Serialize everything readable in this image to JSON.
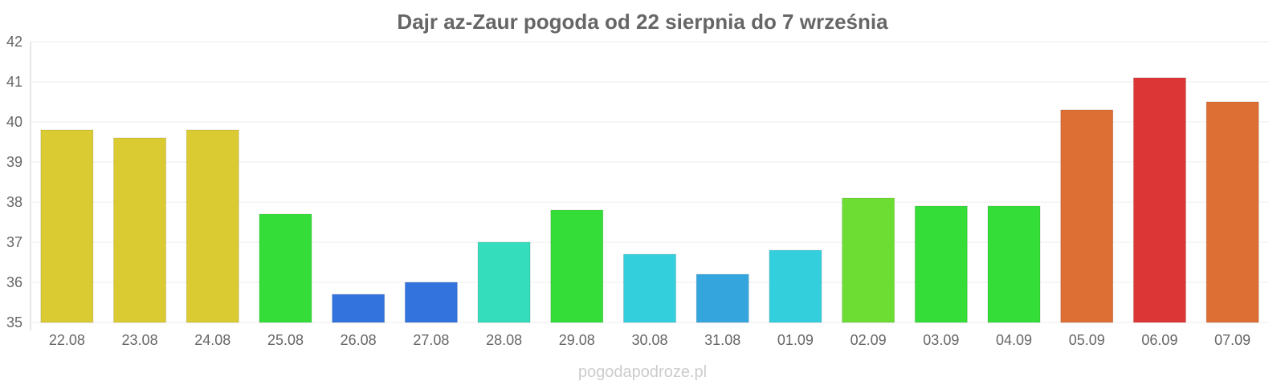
{
  "chart_data": {
    "type": "bar",
    "title": "Dajr az-Zaur pogoda od 22 sierpnia do 7 września",
    "xlabel": "",
    "ylabel": "",
    "ylim": [
      35,
      42
    ],
    "yticks": [
      35,
      36,
      37,
      38,
      39,
      40,
      41,
      42
    ],
    "grid": true,
    "categories": [
      "22.08",
      "23.08",
      "24.08",
      "25.08",
      "26.08",
      "27.08",
      "28.08",
      "29.08",
      "30.08",
      "31.08",
      "01.09",
      "02.09",
      "03.09",
      "04.09",
      "05.09",
      "06.09",
      "07.09"
    ],
    "values": [
      39.8,
      39.6,
      39.8,
      37.7,
      35.7,
      36.0,
      37.0,
      37.8,
      36.7,
      36.2,
      36.8,
      38.1,
      37.9,
      37.9,
      40.3,
      41.1,
      40.5
    ],
    "colors": [
      "#dbcb32",
      "#dbcb32",
      "#dbcb32",
      "#34dd37",
      "#3373dd",
      "#3373dd",
      "#34ddbb",
      "#34dd37",
      "#34cfdd",
      "#34a6dd",
      "#34cfdd",
      "#6ddd34",
      "#34dd37",
      "#34dd37",
      "#dd6e34",
      "#dd3636",
      "#dd6e34"
    ]
  },
  "watermark": "pogodapodroze.pl"
}
